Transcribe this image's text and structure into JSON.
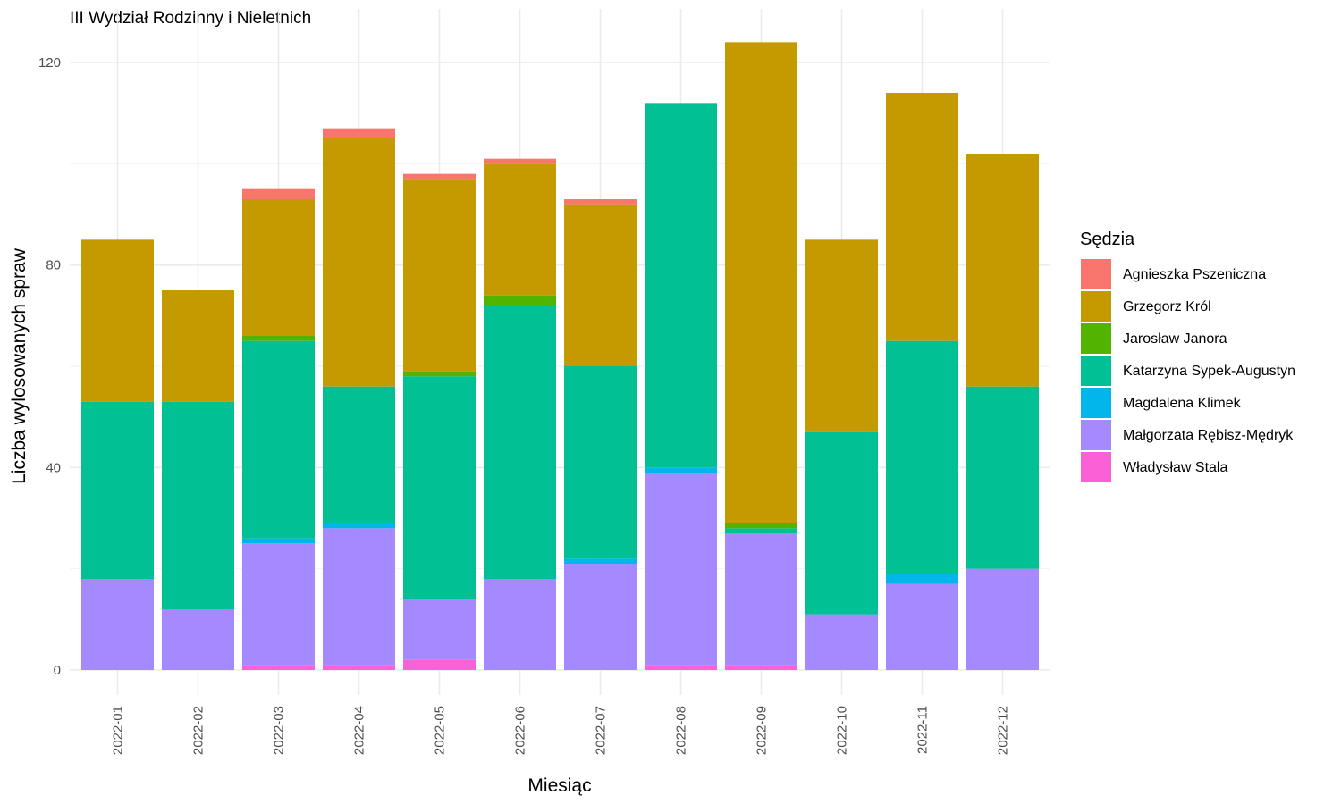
{
  "chart_data": {
    "type": "bar",
    "stacked": true,
    "title": "III Wydział Rodzinny i Nieletnich",
    "xlabel": "Miesiąc",
    "ylabel": "Liczba wylosowanych spraw",
    "ylim": [
      0,
      125
    ],
    "yticks": [
      0,
      40,
      80,
      120
    ],
    "grid": true,
    "legend_title": "Sędzia",
    "legend_position": "right",
    "categories": [
      "2022-01",
      "2022-02",
      "2022-03",
      "2022-04",
      "2022-05",
      "2022-06",
      "2022-07",
      "2022-08",
      "2022-09",
      "2022-10",
      "2022-11",
      "2022-12"
    ],
    "series": [
      {
        "name": "Agnieszka Pszeniczna",
        "color": "#F8766D",
        "values": [
          0,
          0,
          2,
          2,
          1,
          1,
          1,
          0,
          0,
          0,
          0,
          0
        ]
      },
      {
        "name": "Grzegorz Król",
        "color": "#C49A00",
        "values": [
          32,
          22,
          27,
          49,
          38,
          26,
          32,
          0,
          95,
          38,
          49,
          46
        ]
      },
      {
        "name": "Jarosław Janora",
        "color": "#53B400",
        "values": [
          0,
          0,
          1,
          0,
          1,
          2,
          0,
          0,
          1,
          0,
          0,
          0
        ]
      },
      {
        "name": "Katarzyna Sypek-Augustyn",
        "color": "#00C094",
        "values": [
          35,
          41,
          39,
          27,
          44,
          54,
          38,
          72,
          1,
          36,
          46,
          36
        ]
      },
      {
        "name": "Magdalena Klimek",
        "color": "#00B6EB",
        "values": [
          0,
          0,
          1,
          1,
          0,
          0,
          1,
          1,
          0,
          0,
          2,
          0
        ]
      },
      {
        "name": "Małgorzata Rębisz-Mędryk",
        "color": "#A58AFF",
        "values": [
          18,
          12,
          24,
          27,
          12,
          18,
          21,
          38,
          26,
          11,
          17,
          20
        ]
      },
      {
        "name": "Władysław Stala",
        "color": "#FB61D7",
        "values": [
          0,
          0,
          1,
          1,
          2,
          0,
          0,
          1,
          1,
          0,
          0,
          0
        ]
      }
    ]
  }
}
